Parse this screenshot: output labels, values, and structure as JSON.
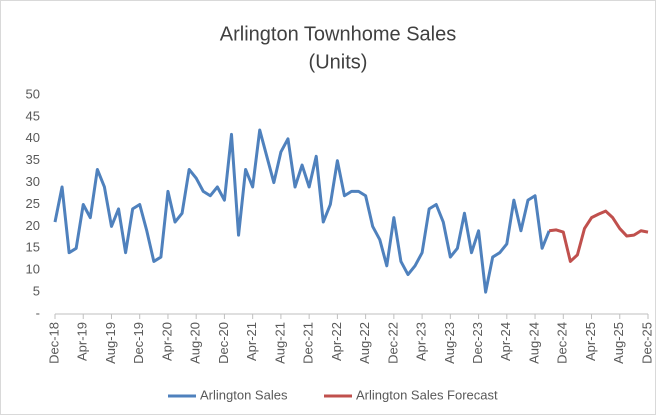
{
  "chart_data": {
    "type": "line",
    "title": "Arlington Townhome Sales",
    "subtitle": "(Units)",
    "categories": [
      "Dec-18",
      null,
      null,
      null,
      "Apr-19",
      null,
      null,
      null,
      "Aug-19",
      null,
      null,
      null,
      "Dec-19",
      null,
      null,
      null,
      "Apr-20",
      null,
      null,
      null,
      "Aug-20",
      null,
      null,
      null,
      "Dec-20",
      null,
      null,
      null,
      "Apr-21",
      null,
      null,
      null,
      "Aug-21",
      null,
      null,
      null,
      "Dec-21",
      null,
      null,
      null,
      "Apr-22",
      null,
      null,
      null,
      "Aug-22",
      null,
      null,
      null,
      "Dec-22",
      null,
      null,
      null,
      "Apr-23",
      null,
      null,
      null,
      "Aug-23",
      null,
      null,
      null,
      "Dec-23",
      null,
      null,
      null,
      "Apr-24",
      null,
      null,
      null,
      "Aug-24",
      null,
      null,
      null,
      "Dec-24",
      null,
      null,
      null,
      "Apr-25",
      null,
      null,
      null,
      "Aug-25",
      null,
      null,
      null,
      "Dec-25"
    ],
    "series": [
      {
        "name": "Arlington Sales",
        "color": "#4f81bd",
        "values": [
          21,
          29,
          14,
          15,
          25,
          22,
          33,
          29,
          20,
          24,
          14,
          24,
          25,
          19,
          12,
          13,
          28,
          21,
          23,
          33,
          31,
          28,
          27,
          29,
          26,
          41,
          18,
          33,
          29,
          42,
          36,
          30,
          37,
          40,
          29,
          34,
          29,
          36,
          21,
          25,
          35,
          27,
          28,
          28,
          27,
          20,
          17,
          11,
          22,
          12,
          9,
          11,
          14,
          24,
          25,
          21,
          13,
          15,
          23,
          14,
          19,
          5,
          13,
          14,
          16,
          26,
          19,
          26,
          27,
          15,
          19,
          null,
          null,
          null,
          null,
          null,
          null,
          null,
          null,
          null,
          null,
          null,
          null,
          null,
          null
        ]
      },
      {
        "name": "Arlington Sales Forecast",
        "color": "#c0504d",
        "values": [
          null,
          null,
          null,
          null,
          null,
          null,
          null,
          null,
          null,
          null,
          null,
          null,
          null,
          null,
          null,
          null,
          null,
          null,
          null,
          null,
          null,
          null,
          null,
          null,
          null,
          null,
          null,
          null,
          null,
          null,
          null,
          null,
          null,
          null,
          null,
          null,
          null,
          null,
          null,
          null,
          null,
          null,
          null,
          null,
          null,
          null,
          null,
          null,
          null,
          null,
          null,
          null,
          null,
          null,
          null,
          null,
          null,
          null,
          null,
          null,
          null,
          null,
          null,
          null,
          null,
          null,
          null,
          null,
          null,
          null,
          19,
          19.2,
          18.7,
          12,
          13.5,
          19.5,
          22,
          22.8,
          23.5,
          22,
          19.5,
          17.8,
          18,
          19,
          18.7
        ]
      }
    ],
    "ylim": [
      0,
      50
    ],
    "yticks": [
      {
        "value": 0,
        "label": "-"
      },
      5,
      10,
      15,
      20,
      25,
      30,
      35,
      40,
      45,
      50
    ],
    "grid": false,
    "legend": "bottom"
  }
}
